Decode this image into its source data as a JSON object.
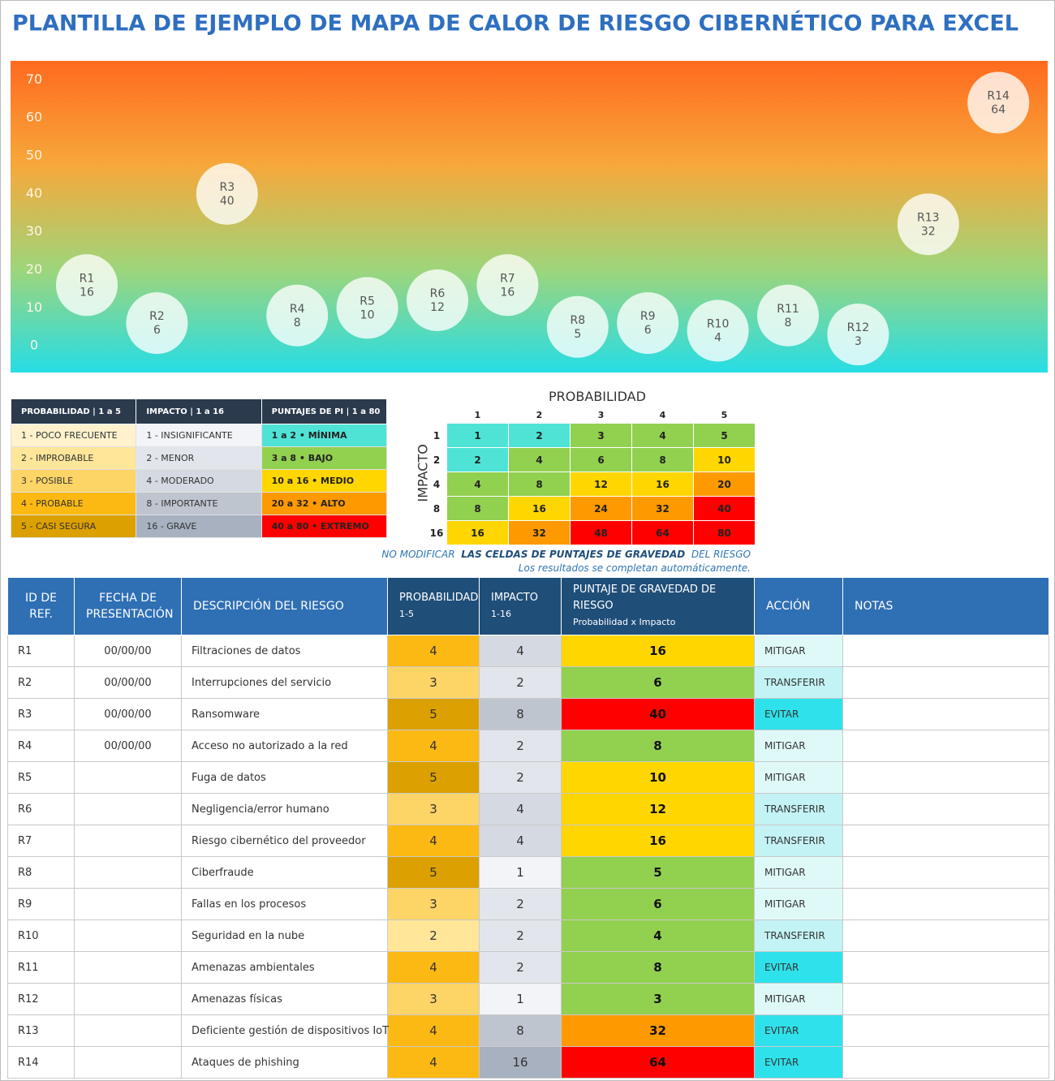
{
  "title": "PLANTILLA DE EJEMPLO DE MAPA DE CALOR DE RIESGO CIBERNÉTICO PARA EXCEL",
  "chart_data": {
    "type": "bubble",
    "categories": [
      "R1",
      "R2",
      "R3",
      "R4",
      "R5",
      "R6",
      "R7",
      "R8",
      "R9",
      "R10",
      "R11",
      "R12",
      "R13",
      "R14"
    ],
    "values": [
      16,
      6,
      40,
      8,
      10,
      12,
      16,
      5,
      6,
      4,
      8,
      3,
      32,
      64
    ],
    "ylim": [
      -7,
      75
    ],
    "yticks": [
      0,
      10,
      20,
      30,
      40,
      50,
      60,
      70
    ],
    "color": "#ffffff",
    "background": [
      "#ff6a1f",
      "#f7a83a",
      "#9fd57a",
      "#26dde6"
    ]
  },
  "legend": {
    "columns": [
      {
        "header": "PROBABILIDAD | 1 a 5",
        "items": [
          "1 - POCO FRECUENTE",
          "2 - IMPROBABLE",
          "3 - POSIBLE",
          "4 - PROBABLE",
          "5 - CASI SEGURA"
        ],
        "colors": [
          "#fff2cc",
          "#ffe699",
          "#fdd466",
          "#fdb913",
          "#dca000"
        ]
      },
      {
        "header": "IMPACTO | 1 a 16",
        "items": [
          "1 - INSIGNIFICANTE",
          "2 - MENOR",
          "4 - MODERADO",
          "8 - IMPORTANTE",
          "16 - GRAVE"
        ],
        "colors": [
          "#f2f4f7",
          "#e2e6ec",
          "#d5dae2",
          "#bfc5cf",
          "#a7b1c0"
        ]
      },
      {
        "header": "PUNTAJES DE PI | 1 a 80",
        "items": [
          "1 a 2 • MÍNIMA",
          "3 a 8 • BAJO",
          "10 a 16 • MEDIO",
          "20 a 32 • ALTO",
          "40 a 80 • EXTREMO"
        ],
        "colors": [
          "#4fe3d6",
          "#92d050",
          "#ffd600",
          "#ff9900",
          "#ff0000"
        ]
      }
    ]
  },
  "matrix": {
    "title": "PROBABILIDAD",
    "axis_label": "IMPACTO",
    "probabilities": [
      1,
      2,
      3,
      4,
      5
    ],
    "rows": [
      {
        "impact": 1,
        "scores": [
          1,
          2,
          3,
          4,
          5
        ],
        "colors": [
          "#4fe3d6",
          "#4fe3d6",
          "#92d050",
          "#92d050",
          "#92d050"
        ]
      },
      {
        "impact": 2,
        "scores": [
          2,
          4,
          6,
          8,
          10
        ],
        "colors": [
          "#4fe3d6",
          "#92d050",
          "#92d050",
          "#92d050",
          "#ffd600"
        ]
      },
      {
        "impact": 4,
        "scores": [
          4,
          8,
          12,
          16,
          20
        ],
        "colors": [
          "#92d050",
          "#92d050",
          "#ffd600",
          "#ffd600",
          "#ff9900"
        ]
      },
      {
        "impact": 8,
        "scores": [
          8,
          16,
          24,
          32,
          40
        ],
        "colors": [
          "#92d050",
          "#ffd600",
          "#ff9900",
          "#ff9900",
          "#ff0000"
        ]
      },
      {
        "impact": 16,
        "scores": [
          16,
          32,
          48,
          64,
          80
        ],
        "colors": [
          "#ffd600",
          "#ff9900",
          "#ff0000",
          "#ff0000",
          "#ff0000"
        ]
      }
    ]
  },
  "note": {
    "parts": [
      "NO MODIFICAR",
      "LAS CELDAS DE PUNTAJES DE GRAVEDAD",
      "DEL RIESGO"
    ],
    "line2": "Los resultados se completan automáticamente."
  },
  "table": {
    "headers": [
      {
        "title": "ID DE REF."
      },
      {
        "title": "FECHA DE PRESENTACIÓN"
      },
      {
        "title": "DESCRIPCIÓN DEL RIESGO"
      },
      {
        "title": "PROBABILIDAD",
        "sub": "1-5"
      },
      {
        "title": "IMPACTO",
        "sub": "1-16"
      },
      {
        "title": "PUNTAJE DE GRAVEDAD DE RIESGO",
        "sub": "Probabilidad x Impacto"
      },
      {
        "title": "ACCIÓN"
      },
      {
        "title": "NOTAS"
      }
    ],
    "rows": [
      {
        "id": "R1",
        "date": "00/00/00",
        "description": "Filtraciones de datos",
        "probability": 4,
        "impact": 4,
        "score": 16,
        "action": "MITIGAR",
        "colors": [
          "#fdb913",
          "#d5dae2",
          "#ffd600",
          "#dff9f9"
        ]
      },
      {
        "id": "R2",
        "date": "00/00/00",
        "description": "Interrupciones del servicio",
        "probability": 3,
        "impact": 2,
        "score": 6,
        "action": "TRANSFERIR",
        "colors": [
          "#fdd466",
          "#e2e6ec",
          "#92d050",
          "#c3f3f4"
        ]
      },
      {
        "id": "R3",
        "date": "00/00/00",
        "description": "Ransomware",
        "probability": 5,
        "impact": 8,
        "score": 40,
        "action": "EVITAR",
        "colors": [
          "#dca000",
          "#bfc5cf",
          "#ff0000",
          "#2fe1ea"
        ]
      },
      {
        "id": "R4",
        "date": "00/00/00",
        "description": "Acceso no autorizado a la red",
        "probability": 4,
        "impact": 2,
        "score": 8,
        "action": "MITIGAR",
        "colors": [
          "#fdb913",
          "#e2e6ec",
          "#92d050",
          "#dff9f9"
        ]
      },
      {
        "id": "R5",
        "description": "Fuga de datos",
        "probability": 5,
        "impact": 2,
        "score": 10,
        "action": "MITIGAR",
        "colors": [
          "#dca000",
          "#e2e6ec",
          "#ffd600",
          "#dff9f9"
        ]
      },
      {
        "id": "R6",
        "description": "Negligencia/error humano",
        "probability": 3,
        "impact": 4,
        "score": 12,
        "action": "TRANSFERIR",
        "colors": [
          "#fdd466",
          "#d5dae2",
          "#ffd600",
          "#c3f3f4"
        ]
      },
      {
        "id": "R7",
        "description": "Riesgo cibernético del proveedor",
        "probability": 4,
        "impact": 4,
        "score": 16,
        "action": "TRANSFERIR",
        "colors": [
          "#fdb913",
          "#d5dae2",
          "#ffd600",
          "#c3f3f4"
        ]
      },
      {
        "id": "R8",
        "description": "Ciberfraude",
        "probability": 5,
        "impact": 1,
        "score": 5,
        "action": "MITIGAR",
        "colors": [
          "#dca000",
          "#f2f4f7",
          "#92d050",
          "#dff9f9"
        ]
      },
      {
        "id": "R9",
        "description": "Fallas en los procesos",
        "probability": 3,
        "impact": 2,
        "score": 6,
        "action": "MITIGAR",
        "colors": [
          "#fdd466",
          "#e2e6ec",
          "#92d050",
          "#dff9f9"
        ]
      },
      {
        "id": "R10",
        "description": "Seguridad en la nube",
        "probability": 2,
        "impact": 2,
        "score": 4,
        "action": "TRANSFERIR",
        "colors": [
          "#ffe699",
          "#e2e6ec",
          "#92d050",
          "#c3f3f4"
        ]
      },
      {
        "id": "R11",
        "description": "Amenazas ambientales",
        "probability": 4,
        "impact": 2,
        "score": 8,
        "action": "EVITAR",
        "colors": [
          "#fdb913",
          "#e2e6ec",
          "#92d050",
          "#2fe1ea"
        ]
      },
      {
        "id": "R12",
        "description": "Amenazas físicas",
        "probability": 3,
        "impact": 1,
        "score": 3,
        "action": "MITIGAR",
        "colors": [
          "#fdd466",
          "#f2f4f7",
          "#92d050",
          "#dff9f9"
        ]
      },
      {
        "id": "R13",
        "description": "Deficiente gestión de dispositivos IoT",
        "probability": 4,
        "impact": 8,
        "score": 32,
        "action": "EVITAR",
        "colors": [
          "#fdb913",
          "#bfc5cf",
          "#ff9900",
          "#2fe1ea"
        ]
      },
      {
        "id": "R14",
        "description": "Ataques de phishing",
        "probability": 4,
        "impact": 16,
        "score": 64,
        "action": "EVITAR",
        "colors": [
          "#fdb913",
          "#a7b1c0",
          "#ff0000",
          "#2fe1ea"
        ]
      }
    ]
  }
}
